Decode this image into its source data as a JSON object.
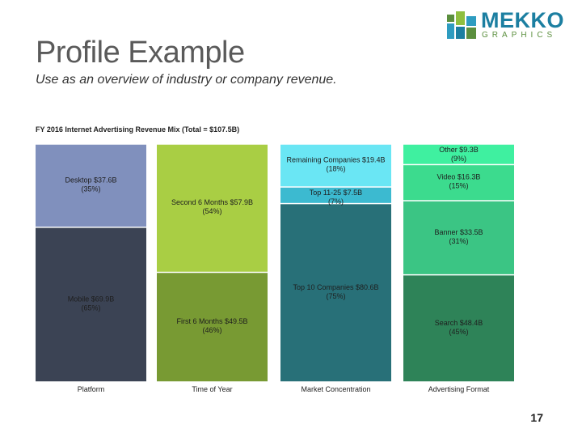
{
  "slide": {
    "title": "Profile Example",
    "subtitle": "Use as an overview of industry or company revenue.",
    "page_number": "17"
  },
  "logo": {
    "word": "MEKKO",
    "sub": "GRAPHICS",
    "colors": [
      "#1c7fa1",
      "#5b8f3e",
      "#8fbf3f",
      "#2e9cc0"
    ]
  },
  "chart_data": {
    "type": "bar",
    "stacked": "100%",
    "title": "FY 2016 Internet Advertising Revenue Mix (Total = $107.5B)",
    "categories": [
      "Platform",
      "Time of Year",
      "Market Concentration",
      "Advertising Format"
    ],
    "columns": [
      {
        "category": "Platform",
        "segments": [
          {
            "name": "Mobile",
            "value": 69.9,
            "percent": 65,
            "label": "Mobile $69.9B",
            "pct_label": "(65%)",
            "color": "#3b4354"
          },
          {
            "name": "Desktop",
            "value": 37.6,
            "percent": 35,
            "label": "Desktop $37.6B",
            "pct_label": "(35%)",
            "color": "#8090bd"
          }
        ]
      },
      {
        "category": "Time of Year",
        "segments": [
          {
            "name": "First 6 Months",
            "value": 49.5,
            "percent": 46,
            "label": "First 6 Months $49.5B",
            "pct_label": "(46%)",
            "color": "#789a33"
          },
          {
            "name": "Second 6 Months",
            "value": 57.9,
            "percent": 54,
            "label": "Second 6 Months $57.9B",
            "pct_label": "(54%)",
            "color": "#a9ce44"
          }
        ]
      },
      {
        "category": "Market Concentration",
        "segments": [
          {
            "name": "Top 10 Companies",
            "value": 80.6,
            "percent": 75,
            "label": "Top 10 Companies $80.6B",
            "pct_label": "(75%)",
            "color": "#287078"
          },
          {
            "name": "Top 11-25",
            "value": 7.5,
            "percent": 7,
            "label": "Top 11-25 $7.5B",
            "pct_label": "(7%)",
            "color": "#3cbad0"
          },
          {
            "name": "Remaining Companies",
            "value": 19.4,
            "percent": 18,
            "label": "Remaining Companies $19.4B",
            "pct_label": "(18%)",
            "color": "#6ae6f4"
          }
        ]
      },
      {
        "category": "Advertising Format",
        "segments": [
          {
            "name": "Search",
            "value": 48.4,
            "percent": 45,
            "label": "Search $48.4B",
            "pct_label": "(45%)",
            "color": "#2e8358"
          },
          {
            "name": "Banner",
            "value": 33.5,
            "percent": 31,
            "label": "Banner $33.5B",
            "pct_label": "(31%)",
            "color": "#3bc584"
          },
          {
            "name": "Video",
            "value": 16.3,
            "percent": 15,
            "label": "Video $16.3B",
            "pct_label": "(15%)",
            "color": "#3cdb8e"
          },
          {
            "name": "Other",
            "value": 9.3,
            "percent": 9,
            "label": "Other $9.3B",
            "pct_label": "(9%)",
            "color": "#3ff0a0"
          }
        ]
      }
    ],
    "ylim": [
      0,
      100
    ],
    "grid": false,
    "legend": "none"
  }
}
